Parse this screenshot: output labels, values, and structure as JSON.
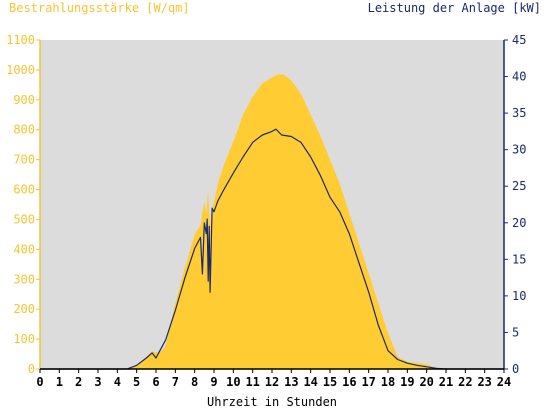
{
  "chart_data": {
    "type": "area",
    "left_axis_title": "Bestrahlungsstärke [W/qm]",
    "right_axis_title": "Leistung der Anlage [kW]",
    "xlabel": "Uhrzeit in Stunden",
    "xlim": [
      0,
      24
    ],
    "x_ticks": [
      "0",
      "1",
      "2",
      "3",
      "4",
      "5",
      "6",
      "7",
      "8",
      "9",
      "10",
      "11",
      "12",
      "13",
      "14",
      "15",
      "16",
      "17",
      "18",
      "19",
      "20",
      "21",
      "22",
      "23",
      "24"
    ],
    "ylim_left": [
      0,
      1100
    ],
    "y_ticks_left": [
      "0",
      "100",
      "200",
      "300",
      "400",
      "500",
      "600",
      "700",
      "800",
      "900",
      "1000",
      "1100"
    ],
    "ylim_right": [
      0,
      45
    ],
    "y_ticks_right": [
      "0",
      "5",
      "10",
      "15",
      "20",
      "25",
      "30",
      "35",
      "40",
      "45"
    ],
    "grid": false,
    "colors": {
      "plot_background": "#dcdcdc",
      "irradiance": "#ffcc33",
      "power": "#1a2a6b",
      "left_axis": "#f5c531",
      "right_axis": "#1a2a6b"
    },
    "series": [
      {
        "name": "Bestrahlungsstärke [W/qm]",
        "axis": "left",
        "style": "filled-area",
        "x": [
          0,
          4.5,
          5.0,
          5.5,
          5.8,
          6.0,
          6.3,
          6.5,
          7.0,
          7.5,
          8.0,
          8.3,
          8.5,
          8.6,
          8.7,
          8.8,
          8.9,
          9.0,
          9.2,
          9.5,
          10.0,
          10.5,
          11.0,
          11.5,
          12.0,
          12.3,
          12.6,
          13.0,
          13.5,
          14.0,
          14.5,
          15.0,
          15.5,
          16.0,
          16.5,
          17.0,
          17.5,
          18.0,
          18.5,
          19.0,
          19.3,
          19.6,
          20.0,
          20.3,
          20.6,
          21.0,
          24
        ],
        "y": [
          0,
          0,
          10,
          40,
          60,
          55,
          60,
          80,
          220,
          340,
          450,
          480,
          560,
          520,
          600,
          470,
          540,
          560,
          620,
          680,
          760,
          850,
          910,
          955,
          975,
          985,
          985,
          965,
          920,
          850,
          780,
          700,
          620,
          520,
          420,
          320,
          220,
          120,
          40,
          25,
          22,
          20,
          15,
          8,
          3,
          0,
          0
        ]
      },
      {
        "name": "Leistung der Anlage [kW]",
        "axis": "right",
        "style": "line",
        "x": [
          0,
          4.5,
          5.0,
          5.5,
          5.8,
          6.0,
          6.2,
          6.5,
          7.0,
          7.5,
          8.0,
          8.3,
          8.4,
          8.5,
          8.6,
          8.65,
          8.7,
          8.75,
          8.8,
          8.9,
          9.0,
          9.2,
          9.5,
          10.0,
          10.5,
          11.0,
          11.5,
          12.0,
          12.2,
          12.5,
          13.0,
          13.5,
          14.0,
          14.5,
          15.0,
          15.5,
          16.0,
          16.5,
          17.0,
          17.5,
          18.0,
          18.5,
          19.0,
          19.5,
          20.0,
          20.5,
          21.0,
          24
        ],
        "y": [
          0,
          0,
          0.5,
          1.5,
          2.2,
          1.5,
          2.5,
          4,
          8,
          12.5,
          16.5,
          18,
          13,
          20,
          18.5,
          20.5,
          12,
          19.5,
          10.5,
          22,
          21.5,
          23,
          24.5,
          26.8,
          29,
          31,
          32,
          32.5,
          32.8,
          32,
          31.8,
          31,
          29,
          26.5,
          23.5,
          21.5,
          18.5,
          14.5,
          10.5,
          6,
          2.5,
          1.3,
          0.8,
          0.5,
          0.3,
          0.1,
          0,
          0
        ]
      }
    ]
  }
}
